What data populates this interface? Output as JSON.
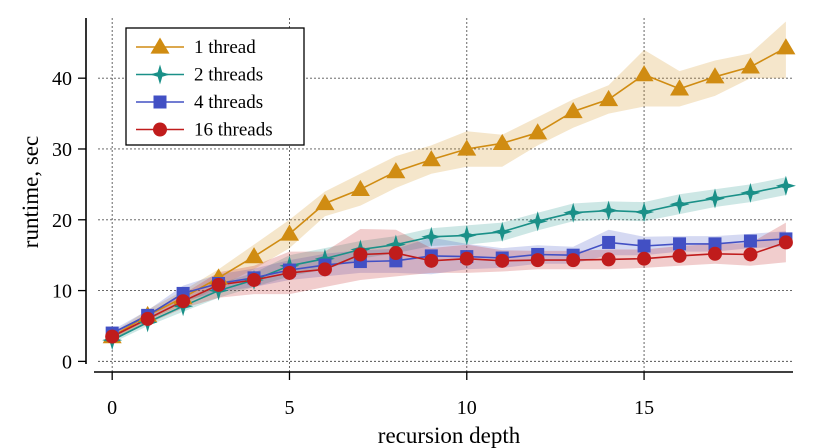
{
  "chart_data": {
    "type": "line",
    "xlabel": "recursion depth",
    "ylabel": "runtime, sec",
    "xlim": [
      -0.4,
      19.2
    ],
    "ylim": [
      -1.5,
      48.5
    ],
    "x_ticks": [
      0,
      5,
      10,
      15
    ],
    "y_ticks": [
      0,
      10,
      20,
      30,
      40
    ],
    "grid": true,
    "legend_position": "top-left",
    "x": [
      0,
      1,
      2,
      3,
      4,
      5,
      6,
      7,
      8,
      9,
      10,
      11,
      12,
      13,
      14,
      15,
      16,
      17,
      18,
      19
    ],
    "series": [
      {
        "name": "1 thread",
        "marker": "triangle",
        "color": "#d08c12",
        "values": [
          3.5,
          6.5,
          9.0,
          11.8,
          14.8,
          18.0,
          22.3,
          24.3,
          26.8,
          28.5,
          30.0,
          30.8,
          32.3,
          35.3,
          37.0,
          40.5,
          38.5,
          40.2,
          41.6,
          44.3
        ],
        "lower": [
          3.0,
          5.8,
          8.0,
          10.5,
          13.0,
          16.0,
          20.5,
          22.0,
          24.5,
          26.5,
          27.5,
          27.5,
          30.5,
          33.0,
          35.0,
          36.0,
          36.0,
          37.5,
          40.0,
          40.0
        ],
        "upper": [
          4.0,
          7.3,
          10.0,
          13.0,
          16.5,
          20.0,
          24.0,
          26.5,
          29.0,
          30.5,
          32.5,
          32.0,
          34.5,
          37.0,
          39.0,
          44.0,
          41.0,
          42.5,
          43.5,
          48.0
        ]
      },
      {
        "name": "2 threads",
        "marker": "star",
        "color": "#1a9088",
        "values": [
          3.0,
          5.5,
          7.8,
          10.0,
          11.5,
          13.5,
          14.5,
          15.8,
          16.5,
          17.6,
          17.8,
          18.3,
          19.8,
          21.0,
          21.3,
          21.1,
          22.2,
          23.0,
          23.8,
          24.8
        ],
        "lower": [
          2.6,
          5.0,
          7.0,
          9.0,
          10.5,
          12.0,
          13.0,
          14.5,
          15.3,
          16.3,
          16.5,
          17.0,
          18.5,
          19.8,
          20.0,
          19.8,
          20.8,
          21.8,
          22.5,
          23.5
        ],
        "upper": [
          3.4,
          6.0,
          8.6,
          11.0,
          12.5,
          15.0,
          16.0,
          17.0,
          17.7,
          18.8,
          19.2,
          19.6,
          21.0,
          22.3,
          22.6,
          22.5,
          23.6,
          24.3,
          25.0,
          26.0
        ]
      },
      {
        "name": "4 threads",
        "marker": "square",
        "color": "#4250c4",
        "values": [
          4.0,
          6.5,
          9.6,
          11.0,
          11.8,
          12.9,
          13.6,
          14.1,
          14.2,
          14.9,
          14.8,
          14.6,
          15.1,
          15.0,
          16.8,
          16.3,
          16.6,
          16.6,
          17.0,
          17.3
        ],
        "lower": [
          3.6,
          5.8,
          8.5,
          9.8,
          10.5,
          11.5,
          12.0,
          12.5,
          12.5,
          12.3,
          13.0,
          13.2,
          13.8,
          13.8,
          15.0,
          15.0,
          15.5,
          15.5,
          16.0,
          16.2
        ],
        "upper": [
          4.4,
          7.2,
          10.7,
          12.3,
          13.1,
          14.3,
          15.2,
          15.7,
          15.9,
          17.5,
          16.6,
          16.0,
          16.4,
          16.2,
          18.6,
          17.6,
          17.7,
          17.7,
          18.0,
          18.4
        ]
      },
      {
        "name": "16 threads",
        "marker": "circle",
        "color": "#c01c1c",
        "values": [
          3.5,
          6.0,
          8.5,
          10.8,
          11.5,
          12.5,
          13.0,
          15.1,
          15.3,
          14.2,
          14.5,
          14.2,
          14.3,
          14.3,
          14.4,
          14.5,
          14.9,
          15.2,
          15.1,
          16.8
        ],
        "lower": [
          3.0,
          5.3,
          7.5,
          9.0,
          9.5,
          9.5,
          10.5,
          11.5,
          12.0,
          12.5,
          12.5,
          12.7,
          13.0,
          13.0,
          13.0,
          13.2,
          13.5,
          13.8,
          13.5,
          14.0
        ],
        "upper": [
          4.0,
          6.7,
          9.5,
          12.6,
          13.5,
          15.5,
          15.5,
          18.7,
          18.6,
          16.0,
          16.5,
          15.7,
          15.6,
          15.6,
          15.8,
          15.8,
          16.3,
          16.6,
          16.7,
          19.6
        ]
      }
    ]
  }
}
